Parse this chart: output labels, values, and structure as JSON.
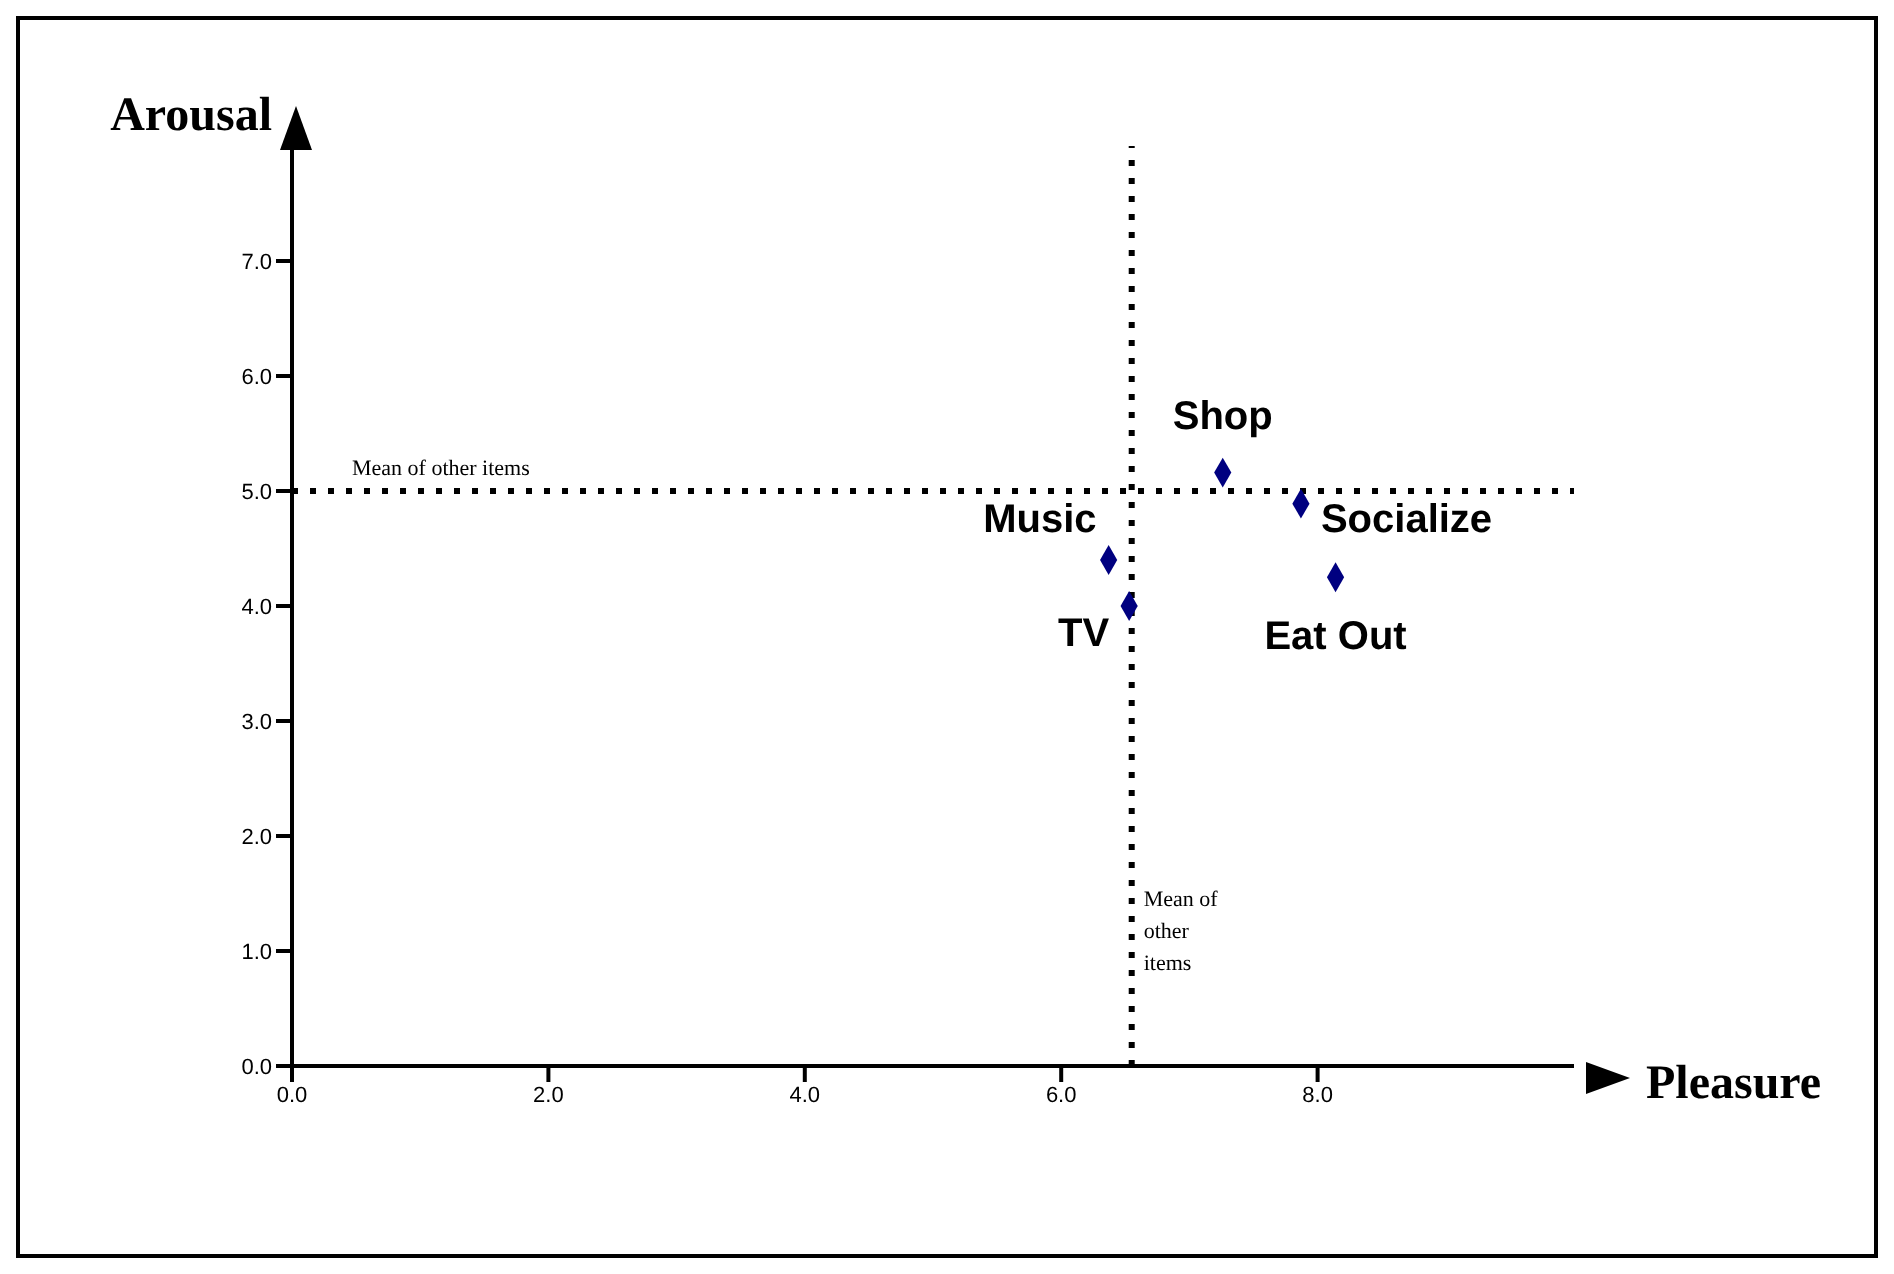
{
  "chart_data": {
    "type": "scatter",
    "xlabel": "Pleasure",
    "ylabel": "Arousal",
    "series": [
      {
        "color": "#000080",
        "x": [
          7.26,
          7.87,
          6.37,
          6.53,
          8.14
        ],
        "values": [
          5.16,
          4.89,
          4.4,
          4.0,
          4.25
        ]
      }
    ],
    "marker": "diamond",
    "grid": false,
    "legend": false,
    "xlim": [
      0,
      10
    ],
    "ylim": [
      0,
      8
    ],
    "xticks": [
      {
        "value": 0,
        "label": "0.0"
      },
      {
        "value": 2,
        "label": "2.0"
      },
      {
        "value": 4,
        "label": "4.0"
      },
      {
        "value": 6,
        "label": "6.0"
      },
      {
        "value": 8,
        "label": "8.0"
      }
    ],
    "yticks": [
      {
        "value": 0,
        "label": "0.0"
      },
      {
        "value": 1,
        "label": "1.0"
      },
      {
        "value": 2,
        "label": "2.0"
      },
      {
        "value": 3,
        "label": "3.0"
      },
      {
        "value": 4,
        "label": "4.0"
      },
      {
        "value": 5,
        "label": "5.0"
      },
      {
        "value": 6,
        "label": "6.0"
      },
      {
        "value": 7,
        "label": "7.0"
      }
    ],
    "ref_lines": [
      {
        "axis": "y",
        "value": 5.0,
        "label": "Mean of other items",
        "line_style": "dotted",
        "color": "#000000"
      },
      {
        "axis": "x",
        "value": 6.55,
        "label": "Mean of other items",
        "line_style": "dotted",
        "color": "#000000"
      }
    ],
    "annotations": [
      {
        "text": "Shop",
        "x": 7.26,
        "y": 5.16
      },
      {
        "text": "Socialize",
        "x": 7.87,
        "y": 4.89
      },
      {
        "text": "Music",
        "x": 6.37,
        "y": 4.4
      },
      {
        "text": "TV",
        "x": 6.53,
        "y": 4.0
      },
      {
        "text": "Eat Out",
        "x": 8.14,
        "y": 4.25
      }
    ]
  }
}
